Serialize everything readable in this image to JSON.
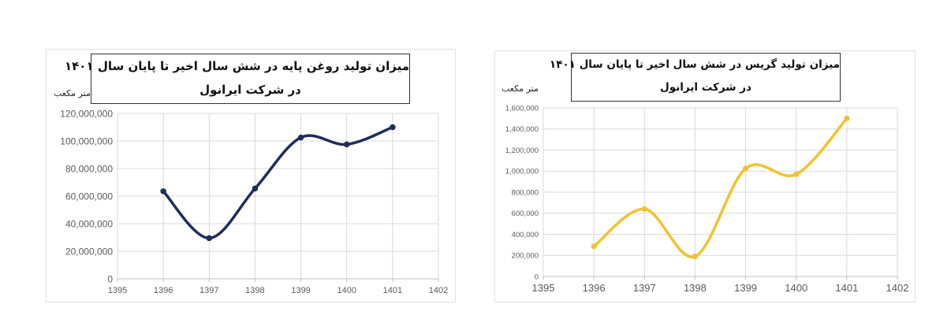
{
  "chart_data": [
    {
      "type": "line",
      "title_lines": [
        "میزان تولید روغن پایه در شش سال اخیر تا پایان سال ۱۴۰۱",
        "در شرکت ایرانول"
      ],
      "unit_label": "متر مکعب",
      "x": [
        1396,
        1397,
        1398,
        1399,
        1400,
        1401
      ],
      "x_ticks": [
        "1395",
        "1396",
        "1397",
        "1398",
        "1399",
        "1400",
        "1401",
        "1402"
      ],
      "xlim": [
        1395,
        1402
      ],
      "y_ticks": [
        "0",
        "20,000,000",
        "40,000,000",
        "60,000,000",
        "80,000,000",
        "100,000,000",
        "120,000,000"
      ],
      "ylim": [
        0,
        120000000
      ],
      "series": [
        {
          "values": [
            63500000,
            29500000,
            65500000,
            102500000,
            97500000,
            110000000
          ],
          "color": "#1f2d5a"
        }
      ],
      "grid": true,
      "smooth": true
    },
    {
      "type": "line",
      "title_lines": [
        "میزان تولید گریس در شش سال اخیر تا پایان سال ۱۴۰۱",
        "در شرکت ایرانول"
      ],
      "unit_label": "متر مکعب",
      "x": [
        1396,
        1397,
        1398,
        1399,
        1400,
        1401
      ],
      "x_ticks": [
        "1395",
        "1396",
        "1397",
        "1398",
        "1399",
        "1400",
        "1401",
        "1402"
      ],
      "xlim": [
        1395,
        1402
      ],
      "y_ticks": [
        "0",
        "200,000",
        "400,000",
        "600,000",
        "800,000",
        "1,000,000",
        "1,200,000",
        "1,400,000",
        "1,600,000"
      ],
      "ylim": [
        0,
        1600000
      ],
      "series": [
        {
          "values": [
            285000,
            640000,
            190000,
            1025000,
            970000,
            1500000
          ],
          "color": "#f2c12e"
        }
      ],
      "grid": true,
      "smooth": true
    }
  ]
}
